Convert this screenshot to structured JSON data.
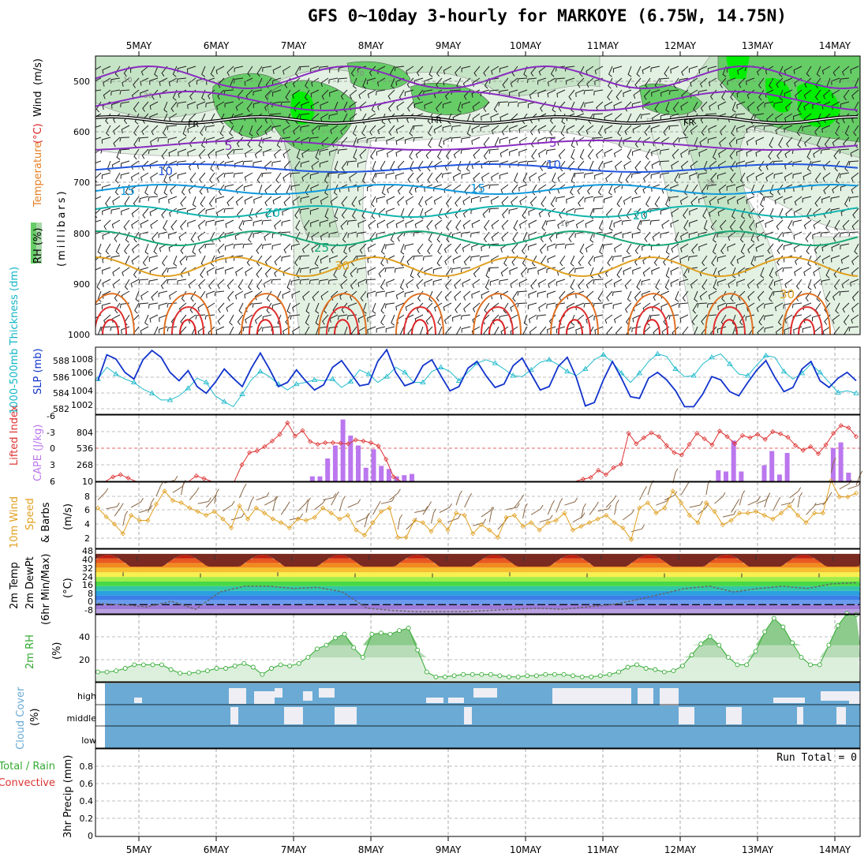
{
  "title": "GFS 0~10day 3-hourly for MARKOYE (6.75W, 14.75N)",
  "dates": [
    "5MAY",
    "6MAY",
    "7MAY",
    "8MAY",
    "9MAY",
    "10MAY",
    "11MAY",
    "12MAY",
    "13MAY",
    "14MAY"
  ],
  "colors": {
    "panel_border": "#000000",
    "grid": "#aaaaaa",
    "temp_purple": "#8a2cc0",
    "temp_blue": "#2255dd",
    "temp_cyan": "#1199dd",
    "temp_teal": "#11b5b0",
    "temp_green": "#18a878",
    "temp_orange": "#e0a020",
    "temp_darkorange": "#e07020",
    "temp_red": "#e03030",
    "rh_light": "#d8ecd8",
    "rh_mid": "#a8d8a8",
    "rh_green": "#66cc66",
    "rh_bright": "#00ee00",
    "thick": "#22bbcc",
    "slp": "#1133cc",
    "li": "#dd3333",
    "cape": "#bb77ee",
    "wind": "#e0a020",
    "barb": "#886644",
    "rh2m": "#33aa33",
    "cloud": "#6aaad4",
    "cloud_gap": "#eeeef4"
  },
  "panels": {
    "upper": {
      "axis_labels": {
        "wind": "Wind",
        "wind_unit": "(m/s)",
        "temp": "Temperature",
        "temp_unit": "(°C)",
        "rh": "RH (%)",
        "pressure": "(millibars)"
      },
      "y_ticks": [
        "500",
        "600",
        "700",
        "800",
        "900",
        "1000"
      ],
      "contour_labels": [
        "5",
        "5",
        "10",
        "10",
        "15",
        "15",
        "20",
        "20",
        "25",
        "30",
        "30",
        "FR",
        "FR",
        "FR",
        "10",
        "30",
        "70",
        "30",
        "10"
      ]
    },
    "thickness_slp": {
      "label_thickness": "1000-500mb Thickness (dm)",
      "label_slp": "SLP (mb)",
      "left_ticks": [
        "588",
        "586",
        "584",
        "582"
      ],
      "right_ticks": [
        "1008",
        "1006",
        "1004",
        "1002"
      ]
    },
    "li_cape": {
      "label_li": "Lifted Index",
      "label_cape": "CAPE (J/kg)",
      "left_ticks": [
        "-6",
        "-3",
        "0",
        "3",
        "6"
      ],
      "right_ticks": [
        "804",
        "536",
        "268",
        "10"
      ]
    },
    "wind10m": {
      "label_a": "10m Wind",
      "label_b": "Speed",
      "label_c": "& Barbs",
      "unit": "(m/s)",
      "ticks": [
        "8",
        "6",
        "4",
        "2"
      ]
    },
    "temp2m": {
      "label_a": "2m Temp",
      "label_b": "2m DewPt",
      "label_c": "(6hr Min/Max)",
      "unit": "(°C)",
      "ticks": [
        "48",
        "40",
        "32",
        "24",
        "16",
        "8",
        "0",
        "-8"
      ]
    },
    "rh2m": {
      "label": "2m RH",
      "unit": "(%)",
      "ticks": [
        "40",
        "20"
      ]
    },
    "cloud": {
      "label": "Cloud Cover",
      "unit": "(%)",
      "levels": [
        "high",
        "middle",
        "low"
      ]
    },
    "precip": {
      "label_a": "Total / Rain",
      "label_b": "Convective",
      "label_c": "3hr Precip (mm)",
      "ticks": [
        "0.8",
        "0.6",
        "0.4",
        "0.2",
        "0"
      ],
      "run_total": "Run Total = 0"
    }
  },
  "chart_data": [
    {
      "type": "line",
      "title": "1000-500mb Thickness / SLP",
      "x_units": "3-hourly steps from 4MAY 12Z",
      "series": [
        {
          "name": "SLP (mb)",
          "axis": "right",
          "ylim": [
            1001,
            1009
          ],
          "values": [
            1005.0,
            1008.1,
            1007.6,
            1006.0,
            1005.2,
            1007.5,
            1008.6,
            1007.8,
            1006.0,
            1005.0,
            1006.2,
            1004.3,
            1003.5,
            1004.8,
            1006.4,
            1005.3,
            1004.3,
            1006.5,
            1008.3,
            1006.4,
            1004.3,
            1004.8,
            1006.3,
            1005.0,
            1003.9,
            1004.5,
            1006.6,
            1007.4,
            1005.9,
            1004.4,
            1004.6,
            1007.3,
            1008.7,
            1006.0,
            1004.4,
            1004.8,
            1006.8,
            1007.5,
            1005.6,
            1003.8,
            1004.3,
            1006.5,
            1007.3,
            1005.6,
            1004.2,
            1004.6,
            1006.8,
            1007.7,
            1005.8,
            1003.9,
            1004.3,
            1006.7,
            1007.8,
            1005.4,
            1002.0,
            1002.4,
            1005.1,
            1007.3,
            1005.3,
            1003.1,
            1002.9,
            1005.3,
            1006.0,
            1005.1,
            1003.8,
            1001.9,
            1001.9,
            1003.4,
            1005.5,
            1005.1,
            1003.7,
            1003.2,
            1004.8,
            1006.3,
            1007.4,
            1005.4,
            1003.7,
            1004.2,
            1006.4,
            1007.3,
            1005.0,
            1004.2,
            1005.3,
            1006.0,
            1005.0
          ]
        },
        {
          "name": "1000-500mb Thickness (dm)",
          "axis": "left",
          "ylim": [
            581,
            589
          ],
          "values": [
            585.2,
            586.6,
            585.8,
            585.2,
            584.8,
            584.0,
            583.5,
            582.7,
            582.7,
            583.2,
            584.1,
            585.3,
            584.8,
            583.2,
            582.5,
            581.9,
            583.4,
            585.1,
            586.1,
            585.5,
            584.6,
            583.9,
            584.6,
            584.8,
            585.1,
            585.0,
            585.2,
            584.2,
            584.9,
            586.3,
            585.8,
            584.8,
            585.5,
            586.6,
            586.0,
            584.8,
            584.8,
            586.1,
            586.6,
            586.1,
            585.0,
            586.0,
            587.1,
            587.5,
            587.1,
            586.4,
            585.6,
            585.5,
            586.3,
            587.2,
            587.5,
            586.9,
            586.1,
            585.6,
            586.4,
            587.5,
            588.1,
            587.2,
            585.9,
            584.8,
            585.9,
            587.3,
            588.2,
            587.9,
            586.4,
            585.5,
            585.6,
            587.0,
            587.8,
            588.2,
            587.0,
            585.8,
            585.6,
            586.9,
            588.0,
            587.8,
            586.1,
            585.2,
            585.9,
            587.0,
            586.0,
            584.8,
            583.6,
            583.8,
            583.5
          ]
        }
      ]
    },
    {
      "type": "bar",
      "title": "Lifted Index / CAPE",
      "series": [
        {
          "name": "Lifted Index",
          "axis": "left",
          "ylim": [
            6,
            -6
          ],
          "values": [
            6,
            6,
            5.2,
            4.8,
            5.4,
            6,
            6,
            6,
            6,
            6,
            6,
            6,
            6,
            5.0,
            5.5,
            6,
            6,
            6,
            6,
            3.0,
            0.8,
            0.5,
            -0.3,
            -1.3,
            -2.5,
            -4.6,
            -2.2,
            -3.2,
            -1.2,
            -0.7,
            -1.0,
            -1.0,
            -0.9,
            -0.8,
            -1.5,
            -1.3,
            -1.0,
            -0.4,
            2.0,
            5.2,
            6,
            6,
            6,
            6,
            6,
            6,
            6,
            6,
            6,
            6,
            6,
            6,
            6,
            6,
            6,
            6,
            6,
            6,
            6,
            6,
            6,
            6,
            6,
            6,
            5.6,
            5.3,
            4.0,
            4.8,
            3.5,
            2.9,
            -2.7,
            -0.8,
            -1.9,
            -2.8,
            -2.1,
            -0.5,
            0.8,
            1.2,
            -0.7,
            -2.7,
            -1.7,
            -0.6,
            -3.1,
            -2.1,
            -0.8,
            -2.3,
            -1.9,
            -2.5,
            -1.6,
            -3.0,
            -2.6,
            -2.0,
            -0.5,
            0.4,
            -0.3,
            1.0,
            -0.6,
            -2.7,
            -4.1,
            -3.7,
            -2.1
          ]
        },
        {
          "name": "CAPE (J/kg)",
          "axis": "right",
          "ylim": [
            0,
            1072
          ],
          "bars": [
            {
              "i": 28,
              "v": 80
            },
            {
              "i": 29,
              "v": 80
            },
            {
              "i": 30,
              "v": 370
            },
            {
              "i": 31,
              "v": 580
            },
            {
              "i": 32,
              "v": 1000
            },
            {
              "i": 33,
              "v": 740
            },
            {
              "i": 34,
              "v": 580
            },
            {
              "i": 35,
              "v": 220
            },
            {
              "i": 36,
              "v": 520
            },
            {
              "i": 37,
              "v": 250
            },
            {
              "i": 38,
              "v": 200
            },
            {
              "i": 39,
              "v": 80
            },
            {
              "i": 40,
              "v": 100
            },
            {
              "i": 41,
              "v": 120
            },
            {
              "i": 81,
              "v": 180
            },
            {
              "i": 82,
              "v": 160
            },
            {
              "i": 83,
              "v": 660
            },
            {
              "i": 84,
              "v": 160
            },
            {
              "i": 87,
              "v": 260
            },
            {
              "i": 88,
              "v": 490
            },
            {
              "i": 89,
              "v": 110
            },
            {
              "i": 90,
              "v": 460
            },
            {
              "i": 96,
              "v": 540
            },
            {
              "i": 97,
              "v": 630
            },
            {
              "i": 98,
              "v": 140
            }
          ]
        }
      ]
    },
    {
      "type": "line",
      "title": "10m Wind Speed & Barbs",
      "ylabel": "m/s",
      "ylim": [
        0,
        9
      ],
      "series": [
        {
          "name": "10m Wind Speed",
          "values": [
            5.5,
            4.3,
            3.3,
            2.0,
            4.5,
            3.8,
            3.8,
            6.0,
            7.8,
            6.5,
            6.2,
            5.5,
            5.0,
            4.5,
            5.0,
            4.0,
            2.8,
            5.8,
            4.0,
            5.5,
            4.8,
            4.0,
            3.5,
            2.8,
            4.0,
            3.8,
            4.2,
            5.5,
            4.8,
            4.0,
            4.5,
            2.5,
            1.8,
            3.5,
            5.0,
            5.5,
            1.5,
            1.5,
            3.8,
            3.5,
            2.3,
            3.8,
            2.5,
            4.8,
            4.5,
            2.0,
            3.2,
            2.5,
            1.5,
            4.2,
            4.5,
            3.0,
            3.5,
            2.5,
            3.5,
            3.8,
            4.8,
            2.5,
            3.0,
            3.5,
            4.0,
            4.5,
            3.5,
            2.8,
            1.2,
            5.5,
            6.2,
            4.8,
            5.5,
            7.8,
            6.2,
            4.5,
            3.5,
            6.2,
            5.0,
            3.2,
            3.8,
            4.8,
            4.8,
            5.0,
            4.5,
            4.0,
            4.8,
            5.8,
            4.5,
            3.5,
            4.8,
            4.8,
            9.2,
            7.0,
            7.0,
            7.5
          ]
        }
      ]
    },
    {
      "type": "area",
      "title": "2m Temp / 2m DewPt (6hr Min/Max)",
      "ylabel": "°C",
      "ylim": [
        -8,
        48
      ],
      "series": [
        {
          "name": "2m Temp max",
          "values": [
            42,
            43,
            42,
            43,
            42,
            42,
            43,
            43,
            43,
            42
          ]
        },
        {
          "name": "2m Temp min",
          "values": [
            28,
            27,
            28,
            27,
            27,
            28,
            27,
            27,
            27,
            27
          ]
        },
        {
          "name": "2m DewPt",
          "values": [
            1,
            0,
            -2,
            3,
            -4,
            11,
            16,
            16,
            14,
            15,
            11,
            -3,
            -5,
            -6,
            -6,
            -6,
            -5,
            -4,
            -3,
            -4,
            -2,
            0,
            4,
            9,
            14,
            16,
            11,
            14,
            16,
            14,
            18,
            19
          ]
        }
      ]
    },
    {
      "type": "area",
      "title": "2m RH",
      "ylabel": "%",
      "ylim": [
        0,
        55
      ],
      "series": [
        {
          "name": "2m RH",
          "values": [
            8,
            8,
            9,
            11,
            14,
            14,
            14,
            14,
            10,
            7,
            7,
            8,
            9,
            11,
            11,
            13,
            15,
            12,
            6,
            11,
            14,
            13,
            15,
            20,
            27,
            30,
            36,
            39,
            28,
            20,
            39,
            40,
            39,
            42,
            44,
            26,
            8,
            4,
            4,
            5,
            6,
            6,
            6,
            6,
            5,
            4,
            4,
            5,
            5,
            6,
            6,
            6,
            5,
            4,
            4,
            5,
            6,
            8,
            12,
            14,
            11,
            10,
            8,
            9,
            13,
            22,
            31,
            37,
            30,
            20,
            14,
            14,
            25,
            41,
            52,
            45,
            32,
            20,
            14,
            14,
            30,
            46,
            56,
            55
          ]
        }
      ]
    },
    {
      "type": "heatmap",
      "title": "Cloud Cover",
      "categories": [
        "high",
        "middle",
        "low"
      ]
    },
    {
      "type": "bar",
      "title": "3hr Precip (mm)",
      "ylabel": "mm",
      "ylim": [
        0,
        0.95
      ],
      "series": [
        {
          "name": "Total / Rain",
          "values": []
        },
        {
          "name": "Convective",
          "values": []
        }
      ]
    }
  ]
}
